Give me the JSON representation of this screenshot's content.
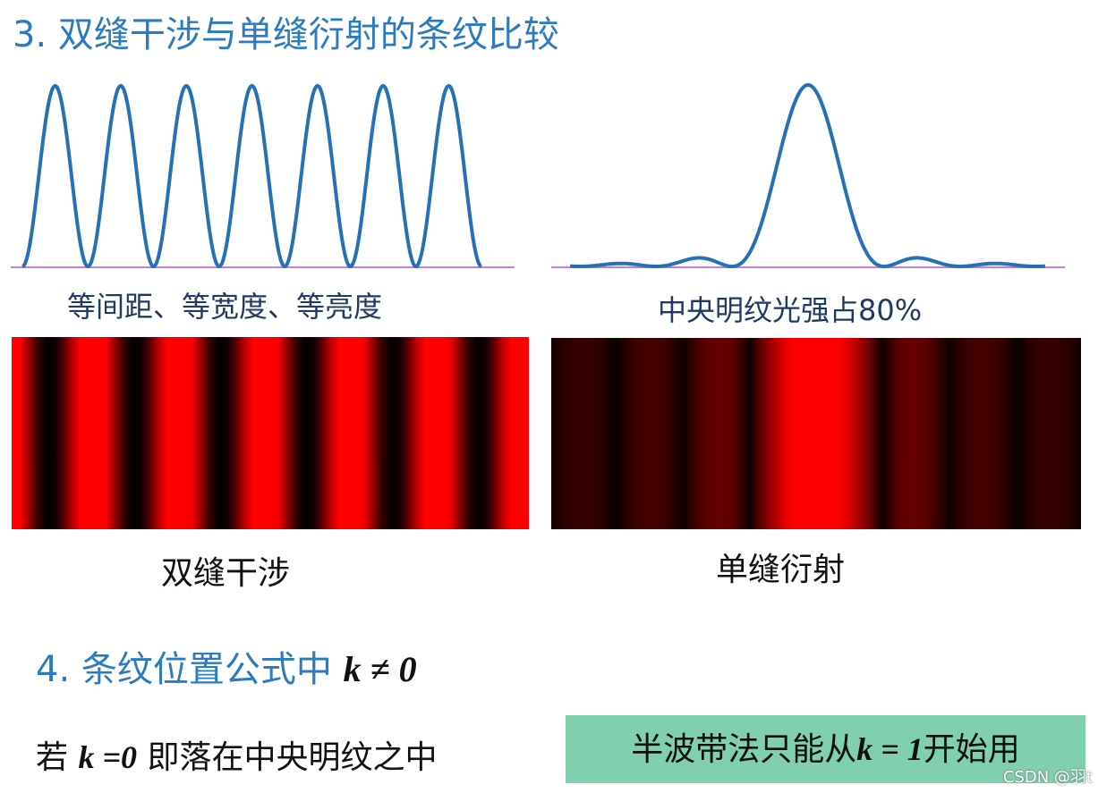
{
  "title": "3. 双缝干涉与单缝衍射的条纹比较",
  "left": {
    "caption": "等间距、等宽度、等亮度",
    "label": "双缝干涉"
  },
  "right": {
    "caption": "中央明纹光强占80%",
    "label": "单缝衍射"
  },
  "section4": {
    "heading": "4. 条纹位置公式中",
    "formula": "k ≠ 0"
  },
  "note": {
    "prefix": "若",
    "formula": "k =0",
    "suffix": "即落在中央明纹之中"
  },
  "box": {
    "prefix": "半波带法只能从",
    "formula": "k = 1",
    "suffix": "开始用"
  },
  "watermark": "CSDN @羽t"
}
